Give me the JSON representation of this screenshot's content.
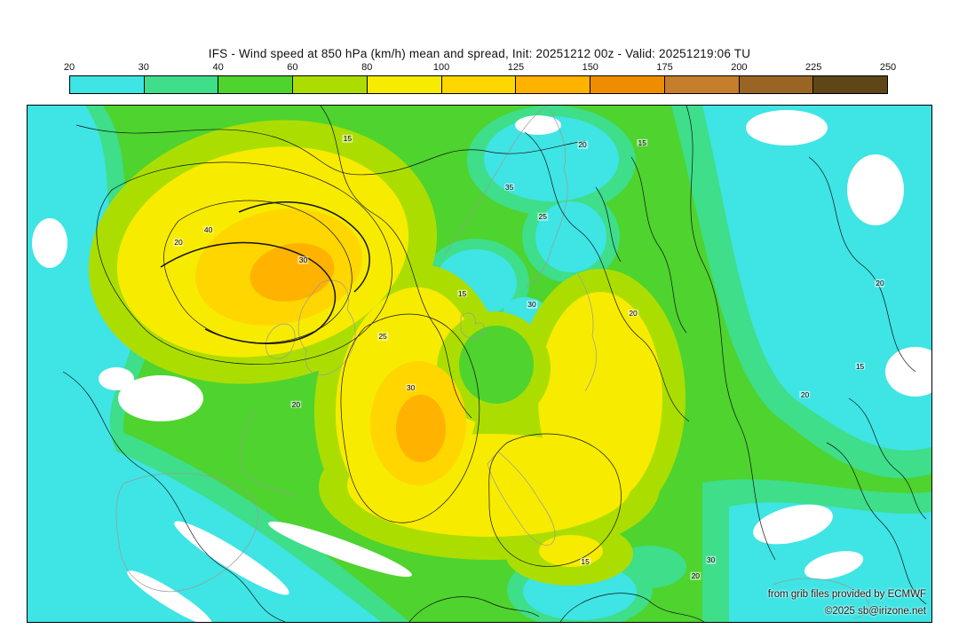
{
  "title": "IFS - Wind speed at 850 hPa (km/h) mean and spread, Init: 20251212 00z - Valid: 20251219:06 TU",
  "colorbar": {
    "ticks": [
      "20",
      "30",
      "40",
      "60",
      "80",
      "100",
      "125",
      "150",
      "175",
      "200",
      "225",
      "250"
    ],
    "colors": [
      "#3fe4e4",
      "#3ede8a",
      "#4ed32f",
      "#abde00",
      "#f7eb00",
      "#ffd600",
      "#ffb200",
      "#ef8d00",
      "#c47e2c",
      "#9a6524",
      "#5e4617"
    ]
  },
  "attribution": {
    "line1": "from grib files provided by ECMWF",
    "line2": "©2025 sb@irizone.net"
  },
  "chart_data": {
    "type": "heatmap",
    "title": "IFS - Wind speed at 850 hPa (km/h) mean and spread",
    "model": "IFS",
    "variable": "Wind speed at 850 hPa",
    "units": "km/h",
    "init": "20251212 00z",
    "valid": "20251219:06 TU",
    "levels": [
      20,
      30,
      40,
      60,
      80,
      100,
      125,
      150,
      175,
      200,
      225,
      250
    ],
    "palette": [
      "#3fe4e4",
      "#3ede8a",
      "#4ed32f",
      "#abde00",
      "#f7eb00",
      "#ffd600",
      "#ffb200",
      "#ef8d00",
      "#c47e2c",
      "#9a6524",
      "#5e4617"
    ],
    "legend_position": "top",
    "features": [
      {
        "desc": "primary wind maximum 100-125 km/h (orange core, NE Atlantic)",
        "x_pct": 28,
        "y_pct": 31
      },
      {
        "desc": "secondary maximum 100-125 km/h (orange core, Biscay/France)",
        "x_pct": 43,
        "y_pct": 61
      },
      {
        "desc": "broad 80-100 km/h yellow band arcing through central Europe",
        "x_pct": 55,
        "y_pct": 60
      },
      {
        "desc": "calm area below 20 km/h",
        "x_pct": 14,
        "y_pct": 56
      },
      {
        "desc": "calm area below 20 km/h",
        "x_pct": 84,
        "y_pct": 4
      },
      {
        "desc": "calm area below 20 km/h",
        "x_pct": 94,
        "y_pct": 16
      }
    ],
    "contour_labels": [
      {
        "value": "15",
        "x": 35.4,
        "y": 6.4
      },
      {
        "value": "20",
        "x": 61.4,
        "y": 7.6
      },
      {
        "value": "15",
        "x": 68.0,
        "y": 7.2
      },
      {
        "value": "35",
        "x": 53.3,
        "y": 15.8
      },
      {
        "value": "25",
        "x": 57.0,
        "y": 21.5
      },
      {
        "value": "20",
        "x": 16.7,
        "y": 26.5
      },
      {
        "value": "40",
        "x": 20.0,
        "y": 24.0
      },
      {
        "value": "30",
        "x": 30.5,
        "y": 29.9
      },
      {
        "value": "15",
        "x": 48.1,
        "y": 36.4
      },
      {
        "value": "30",
        "x": 55.8,
        "y": 38.5
      },
      {
        "value": "20",
        "x": 67.0,
        "y": 40.2
      },
      {
        "value": "20",
        "x": 94.3,
        "y": 34.4
      },
      {
        "value": "25",
        "x": 39.3,
        "y": 44.7
      },
      {
        "value": "15",
        "x": 92.1,
        "y": 50.5
      },
      {
        "value": "30",
        "x": 42.4,
        "y": 54.6
      },
      {
        "value": "20",
        "x": 29.7,
        "y": 57.9
      },
      {
        "value": "20",
        "x": 86.0,
        "y": 56.0
      },
      {
        "value": "15",
        "x": 61.7,
        "y": 88.3
      },
      {
        "value": "30",
        "x": 75.6,
        "y": 88.0
      },
      {
        "value": "20",
        "x": 73.9,
        "y": 91.1
      }
    ]
  }
}
